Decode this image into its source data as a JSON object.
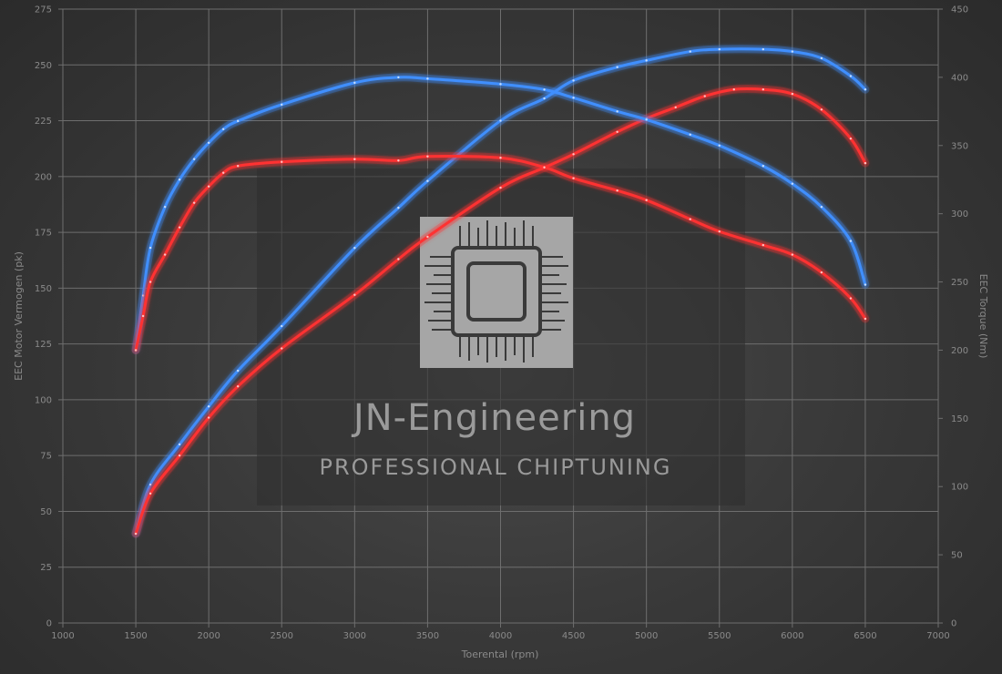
{
  "chart_data": {
    "type": "line",
    "xlabel": "Toerental (rpm)",
    "ylabel_left": "EEC Motor Vermogen (pk)",
    "ylabel_right": "EEC Torque (Nm)",
    "xlim": [
      1000,
      7000
    ],
    "ylim_left": [
      0,
      275
    ],
    "ylim_right": [
      0,
      450
    ],
    "x_ticks": [
      1000,
      1500,
      2000,
      2500,
      3000,
      3500,
      4000,
      4500,
      5000,
      5500,
      6000,
      6500,
      7000
    ],
    "y_ticks_left": [
      0,
      25,
      50,
      75,
      100,
      125,
      150,
      175,
      200,
      225,
      250,
      275
    ],
    "y_ticks_right": [
      0,
      50,
      100,
      150,
      200,
      250,
      300,
      350,
      400,
      450
    ],
    "grid": true,
    "colors": {
      "tuned": "#3f8fff",
      "stock": "#ff3030"
    },
    "series": [
      {
        "axis": "left",
        "color": "tuned",
        "x": [
          1500,
          1600,
          1800,
          2000,
          2200,
          2500,
          3000,
          3300,
          3500,
          4000,
          4300,
          4500,
          4800,
          5000,
          5300,
          5500,
          5800,
          6000,
          6200,
          6400,
          6500
        ],
        "values": [
          40,
          62,
          80,
          97,
          113,
          133,
          168,
          186,
          198,
          225,
          235,
          243,
          249,
          252,
          256,
          257,
          257,
          256,
          253,
          245,
          239
        ]
      },
      {
        "axis": "left",
        "color": "stock",
        "x": [
          1500,
          1600,
          1800,
          2000,
          2200,
          2500,
          3000,
          3300,
          3500,
          4000,
          4300,
          4500,
          4800,
          5000,
          5200,
          5400,
          5600,
          5800,
          6000,
          6200,
          6400,
          6500
        ],
        "values": [
          40,
          58,
          75,
          92,
          106,
          123,
          147,
          163,
          173,
          195,
          204,
          210,
          220,
          226,
          231,
          236,
          239,
          239,
          237,
          230,
          217,
          206
        ]
      },
      {
        "axis": "right",
        "color": "tuned",
        "x": [
          1500,
          1550,
          1600,
          1700,
          1800,
          1900,
          2000,
          2100,
          2200,
          2500,
          3000,
          3300,
          3500,
          4000,
          4300,
          4500,
          4800,
          5000,
          5300,
          5500,
          5800,
          6000,
          6200,
          6400,
          6500
        ],
        "values": [
          200,
          240,
          275,
          305,
          325,
          340,
          352,
          362,
          368,
          380,
          396,
          400,
          399,
          395,
          391,
          385,
          375,
          369,
          358,
          350,
          335,
          322,
          305,
          280,
          248
        ]
      },
      {
        "axis": "right",
        "color": "stock",
        "x": [
          1500,
          1550,
          1600,
          1700,
          1800,
          1900,
          2000,
          2100,
          2200,
          2500,
          3000,
          3300,
          3500,
          4000,
          4300,
          4500,
          4800,
          5000,
          5300,
          5500,
          5800,
          6000,
          6200,
          6400,
          6500
        ],
        "values": [
          200,
          225,
          250,
          270,
          290,
          308,
          320,
          330,
          335,
          338,
          340,
          339,
          342,
          341,
          334,
          326,
          317,
          310,
          296,
          287,
          277,
          270,
          257,
          238,
          223
        ]
      }
    ]
  },
  "watermark": {
    "title": "JN-Engineering",
    "subtitle": "PROFESSIONAL CHIPTUNING",
    "logo": "chip-icon"
  }
}
